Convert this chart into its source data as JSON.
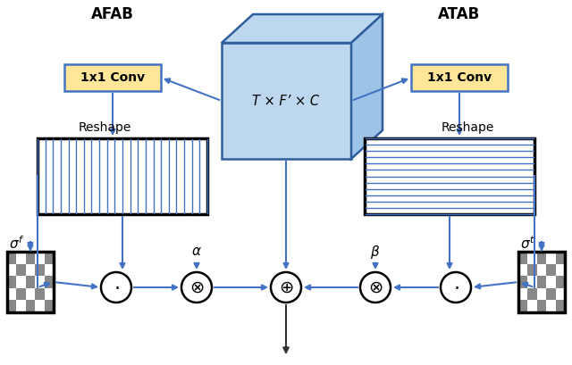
{
  "arrow_color": "#4472C4",
  "box_fill_yellow": "#FFE699",
  "box_edge_yellow": "#4472C4",
  "cube_fill_front": "#BDD7EE",
  "cube_fill_top": "#BDD7EE",
  "cube_fill_right": "#9DC3E6",
  "cube_edge": "#2E5E9E",
  "stripe_color_v": "#4472C4",
  "stripe_color_h": "#4472C4",
  "title_afab": "AFAB",
  "title_atab": "ATAB",
  "cube_label": "T × F’ × C",
  "conv_label": "1x1 Conv"
}
